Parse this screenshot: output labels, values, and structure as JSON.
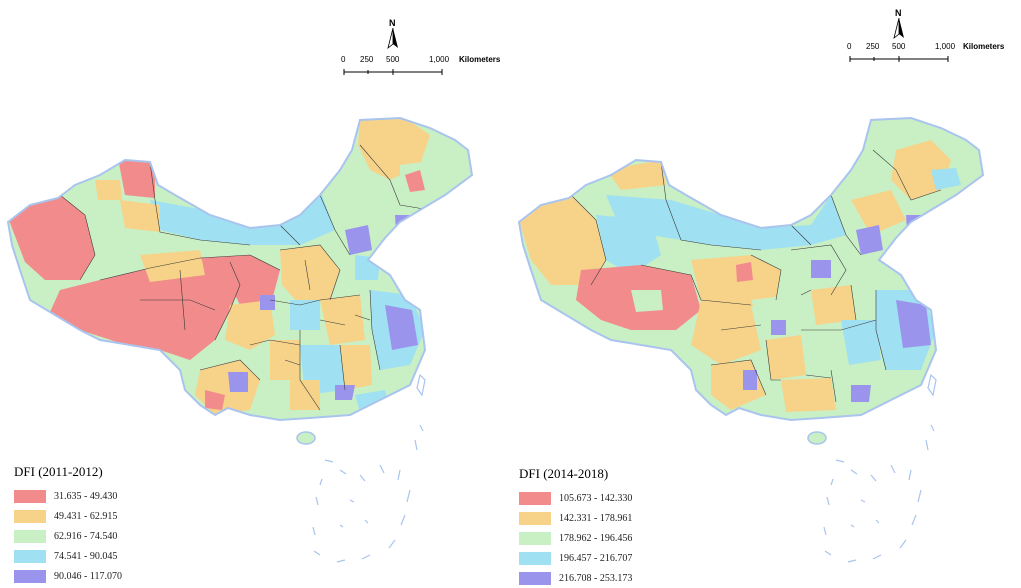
{
  "maps": [
    {
      "id": "left",
      "legend": {
        "title": "DFI (2011-2012)",
        "classes": [
          {
            "label": "31.635  -  49.430",
            "color": "#f28b8b"
          },
          {
            "label": "49.431  -  62.915",
            "color": "#f7d38a"
          },
          {
            "label": "62.916  -  74.540",
            "color": "#c9efc4"
          },
          {
            "label": "74.541  -  90.045",
            "color": "#9fe0f2"
          },
          {
            "label": "90.046  -  117.070",
            "color": "#9a94ec"
          }
        ]
      },
      "scale": {
        "north": "N",
        "ticks": [
          "0",
          "250",
          "500",
          "1,000"
        ],
        "unit": "Kilometers"
      }
    },
    {
      "id": "right",
      "legend": {
        "title": "DFI (2014-2018)",
        "classes": [
          {
            "label": "105.673 - 142.330",
            "color": "#f28b8b"
          },
          {
            "label": "142.331 - 178.961",
            "color": "#f7d38a"
          },
          {
            "label": "178.962 - 196.456",
            "color": "#c9efc4"
          },
          {
            "label": "196.457 - 216.707",
            "color": "#9fe0f2"
          },
          {
            "label": "216.708 - 253.173",
            "color": "#9a94ec"
          }
        ]
      },
      "scale": {
        "north": "N",
        "ticks": [
          "0",
          "250",
          "500",
          "1,000"
        ],
        "unit": "Kilometers"
      }
    }
  ],
  "colors": {
    "border": "#3a3a3a",
    "coast": "#a9c4ee"
  }
}
